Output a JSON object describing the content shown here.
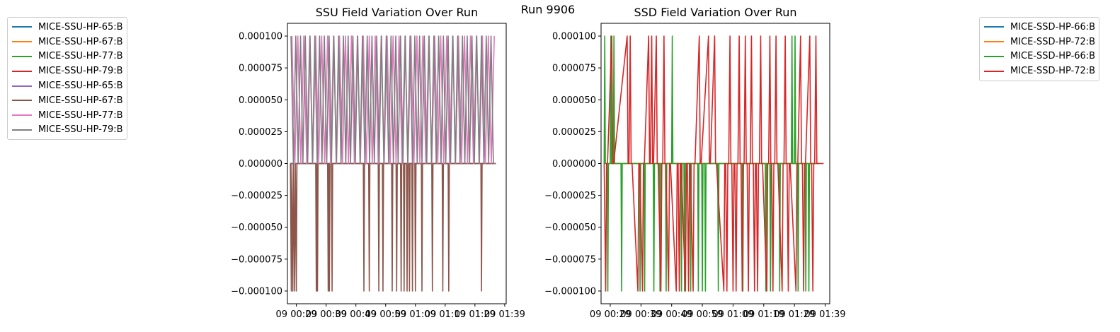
{
  "suptitle": "Run 9906",
  "chart_data": [
    {
      "type": "line",
      "title": "SSU Field Variation Over Run",
      "xlabel": "",
      "ylabel": "",
      "ylim": [
        -0.00011,
        0.00011
      ],
      "y_ticks": [
        -0.0001,
        -7.5e-05,
        -5e-05,
        -2.5e-05,
        0,
        2.5e-05,
        5e-05,
        7.5e-05,
        0.0001
      ],
      "y_tick_labels": [
        "−0.000100",
        "−0.000075",
        "−0.000050",
        "−0.000025",
        "0.000000",
        "0.000025",
        "0.000050",
        "0.000075",
        "0.000100"
      ],
      "x_tick_labels": [
        "09 00:29",
        "09 00:39",
        "09 00:49",
        "09 00:59",
        "09 01:09",
        "09 01:19",
        "09 01:29",
        "09 01:39"
      ],
      "x_range_min": [
        26,
        100.5
      ],
      "legend_position": "outside-left",
      "series": [
        {
          "name": "MICE-SSU-HP-65:B",
          "color": "#1f77b4",
          "x": [
            27,
            96
          ],
          "y": [
            0,
            0
          ]
        },
        {
          "name": "MICE-SSU-HP-67:B",
          "color": "#ff7f0e",
          "x": [
            27,
            96
          ],
          "y": [
            0,
            0
          ]
        },
        {
          "name": "MICE-SSU-HP-77:B",
          "color": "#2ca02c",
          "x": [
            27,
            96
          ],
          "y": [
            0,
            0
          ]
        },
        {
          "name": "MICE-SSU-HP-79:B",
          "color": "#d62728",
          "x": [
            27,
            96
          ],
          "y": [
            0,
            0
          ]
        },
        {
          "name": "MICE-SSU-HP-65:B",
          "color": "#9467bd",
          "x": [
            27,
            96
          ],
          "y": [
            0,
            0
          ]
        },
        {
          "name": "MICE-SSU-HP-67:B",
          "color": "#8c564b",
          "x": [
            27,
            27.3,
            27.5,
            27.8,
            28.1,
            28.4,
            28.7,
            29.0,
            29.2,
            29.5,
            35.5,
            35.7,
            35.9,
            36.1,
            36.3,
            39.5,
            39.7,
            39.9,
            40.1,
            40.3,
            40.8,
            41.0,
            41.2,
            51.5,
            51.7,
            51.9,
            53.3,
            53.5,
            53.7,
            56.5,
            56.7,
            56.9,
            57.9,
            58.1,
            58.3,
            61.0,
            61.2,
            61.4,
            62.5,
            62.7,
            62.9,
            64.0,
            64.2,
            64.4,
            65.0,
            65.2,
            65.4,
            66.0,
            66.2,
            66.4,
            66.8,
            67.0,
            67.2,
            67.8,
            68.0,
            68.2,
            68.8,
            69.0,
            69.2,
            71.0,
            71.2,
            71.4,
            74.5,
            74.7,
            74.9,
            78.0,
            78.2,
            78.4,
            80.0,
            80.2,
            80.4,
            91.0,
            91.2,
            91.4,
            96
          ],
          "y": [
            0,
            -0.0001,
            0,
            -0.0001,
            0,
            -0.0001,
            0,
            -0.0001,
            0,
            0,
            0,
            -0.0001,
            0,
            -0.0001,
            0,
            0,
            -0.0001,
            0,
            -0.0001,
            0,
            0,
            -0.0001,
            0,
            0,
            -0.0001,
            0,
            0,
            -0.0001,
            0,
            0,
            -0.0001,
            0,
            0,
            -0.0001,
            0,
            0,
            -0.0001,
            0,
            0,
            -0.0001,
            0,
            0,
            -0.0001,
            0,
            0,
            -0.0001,
            0,
            0,
            -0.0001,
            0,
            0,
            -0.0001,
            0,
            0,
            -0.0001,
            0,
            0,
            -0.0001,
            0,
            0,
            -0.0001,
            0,
            0,
            -0.0001,
            0,
            0,
            -0.0001,
            0,
            0,
            -0.0001,
            0,
            0,
            -0.0001,
            0,
            0
          ]
        },
        {
          "name": "MICE-SSU-HP-77:B",
          "color": "#e377c2",
          "x": [
            27.5,
            28.5,
            29.5,
            30.5,
            31.5,
            32.5,
            33.5,
            34.5,
            35.5,
            36.5,
            37.5,
            38.5,
            39.5,
            40.5,
            41.5,
            42.5,
            43.5,
            44.5,
            45.5,
            46.5,
            47.5,
            48.5,
            49.5,
            50.5,
            51.5,
            52.5,
            53.5,
            54.5,
            55.5,
            56.5,
            57.5,
            58.5,
            59.5,
            60.5,
            61.5,
            62.5,
            63.5,
            64.5,
            65.5,
            66.5,
            67.5,
            68.5,
            69.5,
            70.5,
            71.5,
            72.5,
            73.5,
            74.5,
            75.5,
            76.5,
            77.5,
            78.5,
            79.5,
            80.5,
            81.5,
            82.5,
            83.5,
            84.5,
            85.5,
            86.5,
            87.5,
            88.5,
            89.5,
            90.5,
            91.5,
            92.5,
            93.5,
            94.5,
            95.5
          ],
          "y": [
            0.0001,
            0,
            0.0001,
            0,
            0.0001,
            0,
            0.0001,
            0,
            0.0001,
            0,
            0.0001,
            0,
            0.0001,
            0,
            0.0001,
            0,
            0.0001,
            0,
            0.0001,
            0,
            0.0001,
            0,
            0.0001,
            0,
            0.0001,
            0,
            0.0001,
            0,
            0.0001,
            0,
            0.0001,
            0,
            0.0001,
            0,
            0.0001,
            0,
            0.0001,
            0,
            0.0001,
            0,
            0.0001,
            0,
            0.0001,
            0,
            0.0001,
            0,
            0.0001,
            0,
            0.0001,
            0,
            0.0001,
            0,
            0.0001,
            0,
            0.0001,
            0,
            0.0001,
            0,
            0.0001,
            0,
            0.0001,
            0,
            0.0001,
            0,
            0.0001,
            0,
            0.0001,
            0,
            0.0001
          ]
        },
        {
          "name": "MICE-SSU-HP-79:B",
          "color": "#7f7f7f",
          "x": [
            27.2,
            28.0,
            28.8,
            29.6,
            30.4,
            31.2,
            32.0,
            32.8,
            33.6,
            34.4,
            35.2,
            36.0,
            36.8,
            37.6,
            38.4,
            39.2,
            40.0,
            40.8,
            41.6,
            42.4,
            43.2,
            44.0,
            44.8,
            45.6,
            46.4,
            47.2,
            48.0,
            48.8,
            49.6,
            50.4,
            51.2,
            52.0,
            52.8,
            53.6,
            54.4,
            55.2,
            56.0,
            56.8,
            57.6,
            58.4,
            59.2,
            60.0,
            60.8,
            61.6,
            62.4,
            63.2,
            64.0,
            64.8,
            65.6,
            66.4,
            67.2,
            68.0,
            68.8,
            69.6,
            70.4,
            71.2,
            72.0,
            72.8,
            73.6,
            74.4,
            75.2,
            76.0,
            76.8,
            77.6,
            78.4,
            79.2,
            80.0,
            80.8,
            81.6,
            82.4,
            83.2,
            84.0,
            84.8,
            85.6,
            86.4,
            87.2,
            88.0,
            88.8,
            89.6,
            90.4,
            91.2,
            92.0,
            92.8,
            93.6,
            94.4,
            95.2,
            96.0
          ],
          "y": [
            0.0001,
            0,
            0.0001,
            0,
            0.0001,
            0,
            0.0001,
            0,
            0.0001,
            0,
            0.0001,
            0,
            0.0001,
            0,
            0.0001,
            0,
            0.0001,
            0,
            0.0001,
            0,
            0.0001,
            0,
            0.0001,
            0,
            0.0001,
            0,
            0.0001,
            0,
            0.0001,
            0,
            0.0001,
            0,
            0.0001,
            0,
            0.0001,
            0,
            0.0001,
            0,
            0.0001,
            0,
            0.0001,
            0,
            0.0001,
            0,
            0.0001,
            0,
            0.0001,
            0,
            0.0001,
            0,
            0.0001,
            0,
            0.0001,
            0,
            0.0001,
            0,
            0.0001,
            0,
            0.0001,
            0,
            0.0001,
            0,
            0.0001,
            0,
            0.0001,
            0,
            0.0001,
            0,
            0.0001,
            0,
            0.0001,
            0,
            0.0001,
            0,
            0.0001,
            0,
            0.0001,
            0,
            0.0001,
            0,
            0.0001,
            0,
            0.0001,
            0,
            0.0001,
            0,
            0
          ]
        }
      ]
    },
    {
      "type": "line",
      "title": "SSD Field Variation Over Run",
      "xlabel": "",
      "ylabel": "",
      "ylim": [
        -0.00011,
        0.00011
      ],
      "y_ticks": [
        -0.0001,
        -7.5e-05,
        -5e-05,
        -2.5e-05,
        0,
        2.5e-05,
        5e-05,
        7.5e-05,
        0.0001
      ],
      "y_tick_labels": [
        "−0.000100",
        "−0.000075",
        "−0.000050",
        "−0.000025",
        "0.000000",
        "0.000025",
        "0.000050",
        "0.000075",
        "0.000100"
      ],
      "x_tick_labels": [
        "09 00:29",
        "09 00:39",
        "09 00:49",
        "09 00:59",
        "09 01:09",
        "09 01:19",
        "09 01:29",
        "09 01:39"
      ],
      "x_range_min": [
        26,
        100.5
      ],
      "legend_position": "outside-right",
      "series": [
        {
          "name": "MICE-SSD-HP-66:B",
          "color": "#1f77b4",
          "x": [
            27,
            97
          ],
          "y": [
            0,
            0
          ]
        },
        {
          "name": "MICE-SSD-HP-72:B",
          "color": "#ff7f0e",
          "x": [
            27,
            97
          ],
          "y": [
            0,
            0
          ]
        },
        {
          "name": "MICE-SSD-HP-66:B",
          "color": "#2ca02c",
          "x": [
            27,
            27.2,
            27.4,
            28.0,
            28.2,
            28.4,
            29.0,
            29.2,
            29.4,
            30.0,
            30.2,
            30.4,
            32.5,
            32.7,
            32.9,
            38.5,
            38.7,
            38.9,
            40.0,
            40.2,
            40.4,
            43.0,
            43.2,
            43.4,
            45.0,
            45.2,
            45.4,
            47.0,
            47.2,
            47.4,
            49.0,
            49.2,
            49.4,
            52.0,
            52.2,
            52.4,
            53.0,
            53.2,
            53.4,
            55.0,
            55.2,
            55.4,
            57.5,
            57.7,
            57.9,
            58.8,
            59.0,
            59.2,
            59.8,
            60.0,
            60.2,
            64.0,
            64.2,
            64.4,
            72.0,
            72.2,
            72.4,
            79.5,
            79.7,
            79.9,
            81.0,
            81.2,
            81.4,
            84.0,
            84.2,
            84.4,
            88.0,
            88.2,
            88.4,
            89.0,
            89.2,
            89.4,
            90.0,
            90.2,
            90.4,
            92.5,
            92.7,
            92.9,
            93.5,
            93.7,
            93.9,
            97
          ],
          "y": [
            0,
            0.0001,
            0,
            0,
            -0.0001,
            0,
            0,
            0.0001,
            0,
            0,
            0.0001,
            0,
            0,
            -0.0001,
            0,
            0,
            -0.0001,
            0,
            0,
            -0.0001,
            0,
            0,
            -0.0001,
            0,
            0,
            -0.0001,
            0,
            0,
            -0.0001,
            0,
            0,
            0.0001,
            0,
            0,
            -0.0001,
            0,
            0,
            -0.0001,
            0,
            0,
            -0.0001,
            0,
            0,
            -0.0001,
            0,
            0,
            -0.0001,
            0,
            0,
            -0.0001,
            0,
            0,
            -0.0001,
            0,
            0,
            -0.0001,
            0,
            0,
            -0.0001,
            0,
            0,
            -0.0001,
            0,
            0,
            -0.0001,
            0,
            0,
            0.0001,
            0,
            0,
            0.0001,
            0,
            0,
            -0.0001,
            0,
            0,
            -0.0001,
            0,
            0,
            -0.0001,
            0,
            0
          ]
        },
        {
          "name": "MICE-SSD-HP-72:B",
          "color": "#d62728",
          "x": [
            27,
            27.5,
            27.8,
            28.1,
            29.5,
            29.8,
            30.1,
            34.5,
            34.8,
            35.1,
            35.5,
            35.8,
            36.1,
            38.0,
            38.3,
            38.6,
            39.5,
            39.8,
            40.1,
            41.5,
            41.8,
            42.1,
            42.5,
            42.8,
            43.1,
            44.0,
            44.3,
            44.6,
            45.5,
            45.8,
            46.1,
            46.5,
            46.8,
            47.1,
            48.0,
            48.3,
            48.6,
            50.5,
            50.8,
            51.1,
            51.5,
            51.8,
            52.1,
            53.5,
            53.8,
            54.1,
            54.5,
            54.8,
            55.1,
            56.0,
            56.3,
            56.6,
            58.0,
            58.3,
            58.6,
            61.0,
            61.3,
            61.6,
            63.0,
            63.3,
            63.6,
            66.0,
            66.3,
            66.6,
            67.0,
            67.3,
            67.6,
            68.0,
            68.3,
            68.6,
            69.0,
            69.3,
            69.6,
            70.0,
            70.3,
            70.6,
            71.0,
            71.3,
            71.6,
            72.0,
            72.3,
            72.6,
            73.0,
            73.3,
            73.6,
            74.0,
            74.3,
            74.6,
            75.0,
            75.3,
            75.6,
            76.0,
            76.3,
            76.6,
            77.0,
            77.3,
            77.6,
            78.0,
            78.3,
            78.6,
            80.0,
            80.3,
            80.6,
            81.0,
            81.3,
            81.6,
            82.0,
            82.3,
            82.6,
            83.0,
            83.3,
            83.6,
            85.0,
            85.3,
            85.6,
            86.0,
            86.3,
            86.6,
            87.0,
            87.3,
            87.6,
            89.5,
            89.8,
            90.1,
            91.0,
            91.3,
            91.6,
            92.0,
            92.3,
            92.6,
            94.0,
            94.3,
            94.6,
            95.0,
            95.3,
            95.6,
            96.0,
            96.3,
            96.6,
            98.5
          ],
          "y": [
            0,
            -0.0001,
            0,
            0,
            0.0001,
            0,
            0,
            0.0001,
            0,
            0,
            0.0001,
            0,
            0,
            -0.0001,
            0,
            0,
            -0.0001,
            0,
            0,
            0.0001,
            0,
            0,
            0.0001,
            0,
            0,
            0.0001,
            0,
            0,
            -0.0001,
            0,
            0,
            0.0001,
            0,
            0,
            -0.0001,
            0,
            0,
            -0.0001,
            0,
            0,
            -0.0001,
            0,
            0,
            -0.0001,
            0,
            0,
            -0.0001,
            0,
            0,
            -0.0001,
            0,
            0,
            0.0001,
            0,
            0,
            0.0001,
            0,
            0,
            0.0001,
            0,
            0,
            -0.0001,
            0,
            0,
            -0.0001,
            0,
            0,
            0.0001,
            0,
            0,
            -0.0001,
            0,
            0,
            -0.0001,
            0,
            0,
            0.0001,
            0,
            0,
            -0.0001,
            0,
            0,
            0.0001,
            0,
            0,
            -0.0001,
            0,
            0,
            0.0001,
            0,
            0,
            -0.0001,
            0,
            0,
            -0.0001,
            0,
            0,
            0.0001,
            0,
            0,
            -0.0001,
            0,
            0,
            0.0001,
            0,
            0,
            -0.0001,
            0,
            0,
            0.0001,
            0,
            0,
            -0.0001,
            0,
            0,
            0.0001,
            0,
            0,
            -0.0001,
            0,
            0,
            -0.0001,
            0,
            0,
            0.0001,
            0,
            0,
            -0.0001,
            0,
            0,
            0.0001,
            0,
            0,
            -0.0001,
            0,
            0,
            0.0001,
            0,
            0,
            0
          ]
        }
      ]
    }
  ]
}
